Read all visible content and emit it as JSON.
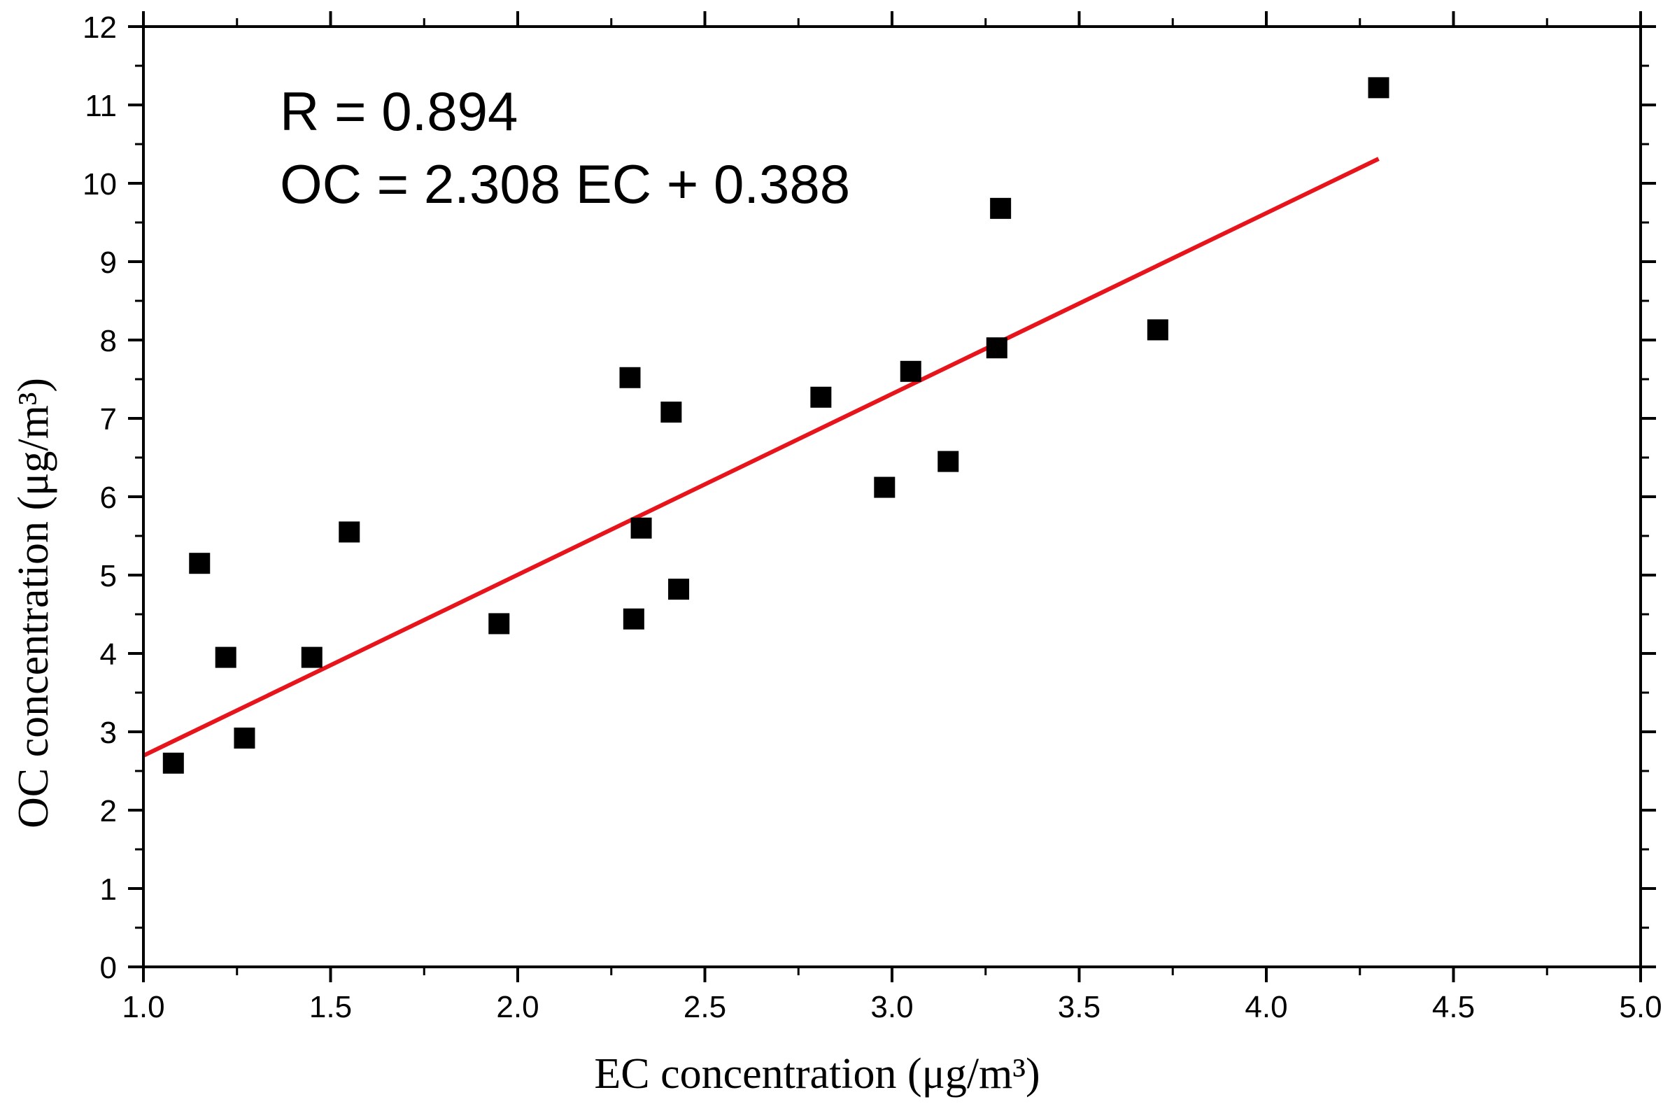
{
  "chart_data": {
    "type": "scatter",
    "xlabel": "EC concentration (μg/m³)",
    "ylabel": "OC concentration (μg/m³)",
    "xlim": [
      1.0,
      5.0
    ],
    "ylim": [
      0,
      12
    ],
    "x_ticks": [
      "1.0",
      "1.5",
      "2.0",
      "2.5",
      "3.0",
      "3.5",
      "4.0",
      "4.5",
      "5.0"
    ],
    "y_ticks": [
      "0",
      "1",
      "2",
      "3",
      "4",
      "5",
      "6",
      "7",
      "8",
      "9",
      "10",
      "11",
      "12"
    ],
    "grid": false,
    "series": [
      {
        "name": "OC vs EC",
        "marker": "square",
        "color": "#000000",
        "points": [
          {
            "x": 1.08,
            "y": 2.6
          },
          {
            "x": 1.15,
            "y": 5.15
          },
          {
            "x": 1.22,
            "y": 3.95
          },
          {
            "x": 1.27,
            "y": 2.92
          },
          {
            "x": 1.45,
            "y": 3.95
          },
          {
            "x": 1.55,
            "y": 5.55
          },
          {
            "x": 1.95,
            "y": 4.38
          },
          {
            "x": 2.3,
            "y": 7.52
          },
          {
            "x": 2.31,
            "y": 4.44
          },
          {
            "x": 2.33,
            "y": 5.6
          },
          {
            "x": 2.41,
            "y": 7.08
          },
          {
            "x": 2.43,
            "y": 4.82
          },
          {
            "x": 2.81,
            "y": 7.27
          },
          {
            "x": 2.98,
            "y": 6.12
          },
          {
            "x": 3.05,
            "y": 7.6
          },
          {
            "x": 3.15,
            "y": 6.45
          },
          {
            "x": 3.28,
            "y": 7.9
          },
          {
            "x": 3.29,
            "y": 9.68
          },
          {
            "x": 3.71,
            "y": 8.13
          },
          {
            "x": 4.3,
            "y": 11.22
          }
        ]
      }
    ],
    "fit_line": {
      "slope": 2.308,
      "intercept": 0.388,
      "x_range": [
        1.0,
        4.3
      ],
      "color": "#e8141b"
    },
    "annotations": [
      "R = 0.894",
      "OC = 2.308 EC + 0.388"
    ]
  }
}
